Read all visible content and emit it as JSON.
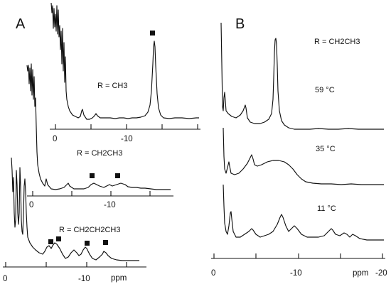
{
  "panels": [
    {
      "label": "A",
      "traces": [
        {
          "label": "R = CH3",
          "axis_tick_labels": [
            "0",
            "-10"
          ],
          "axis_ticks_ppm": [
            0,
            -5,
            -10,
            -15,
            -20
          ],
          "peaks_ppm": [
            -0.2,
            -0.5,
            -0.9,
            -1.2,
            -3.3,
            -5.0,
            -12.2
          ],
          "marked_peaks_ppm": [
            -12.2
          ]
        },
        {
          "label": "R = CH2CH3",
          "axis_tick_labels": [
            "0",
            "-10"
          ],
          "axis_ticks_ppm": [
            0,
            -5,
            -10,
            -15
          ],
          "peaks_ppm": [
            -0.1,
            -0.4,
            -0.8,
            -1.1,
            -2.0,
            -4.8,
            -7.5,
            -10.0,
            -11.5
          ],
          "marked_peaks_ppm": [
            -7.5,
            -11.0
          ]
        },
        {
          "label": "R = CH2CH2CH3",
          "axis_tick_labels": [
            "0",
            "-10",
            "ppm"
          ],
          "axis_ticks_ppm": [
            0,
            -5,
            -10,
            -15
          ],
          "peaks_ppm": [
            1.0,
            0.5,
            0.0,
            -0.6,
            -5.3,
            -6.2,
            -9.0,
            -10.0,
            -12.0
          ],
          "marked_peaks_ppm": [
            -5.3,
            -6.5,
            -9.9,
            -12.3
          ]
        }
      ]
    },
    {
      "label": "B",
      "series_label": "R = CH2CH3",
      "axis_tick_labels": [
        "0",
        "-10",
        "ppm",
        "-20"
      ],
      "axis_ticks_ppm": [
        0,
        -5,
        -10,
        -15,
        -20
      ],
      "traces": [
        {
          "label": "59 °C",
          "peaks_ppm": [
            -1.0,
            -4.0,
            -7.5
          ]
        },
        {
          "label": "35 °C",
          "peaks_ppm": [
            -1.8,
            -4.6,
            -9.0
          ]
        },
        {
          "label": "11 °C",
          "peaks_ppm": [
            -1.0,
            -2.3,
            -4.9,
            -8.0,
            -9.8,
            -14.3,
            -15.7,
            -16.8
          ]
        }
      ]
    }
  ],
  "chart_data": [
    {
      "type": "line",
      "title": "A",
      "xlabel": "ppm",
      "ylabel": "",
      "xlim": [
        2,
        -20
      ],
      "series": [
        {
          "name": "R = CH3",
          "peaks_ppm": [
            -0.2,
            -0.5,
            -0.9,
            -1.2,
            -3.3,
            -5.0,
            -12.2
          ],
          "marked_peaks_ppm": [
            -12.2
          ]
        },
        {
          "name": "R = CH2CH3",
          "peaks_ppm": [
            -0.1,
            -0.4,
            -0.8,
            -1.1,
            -2.0,
            -4.8,
            -7.5,
            -10.0,
            -11.5
          ],
          "marked_peaks_ppm": [
            -7.5,
            -11.0
          ]
        },
        {
          "name": "R = CH2CH2CH3",
          "peaks_ppm": [
            1.0,
            0.5,
            0.0,
            -0.6,
            -5.3,
            -6.2,
            -9.0,
            -10.0,
            -12.0
          ],
          "marked_peaks_ppm": [
            -5.3,
            -6.5,
            -9.9,
            -12.3
          ]
        }
      ]
    },
    {
      "type": "line",
      "title": "B",
      "xlabel": "ppm",
      "ylabel": "",
      "xlim": [
        0,
        -20
      ],
      "series": [
        {
          "name": "59 °C",
          "peaks_ppm": [
            -1.0,
            -4.0,
            -7.5
          ]
        },
        {
          "name": "35 °C",
          "peaks_ppm": [
            -1.8,
            -4.6,
            -9.0
          ]
        },
        {
          "name": "11 °C",
          "peaks_ppm": [
            -1.0,
            -2.3,
            -4.9,
            -8.0,
            -9.8,
            -14.3,
            -15.7,
            -16.8
          ]
        }
      ]
    }
  ]
}
